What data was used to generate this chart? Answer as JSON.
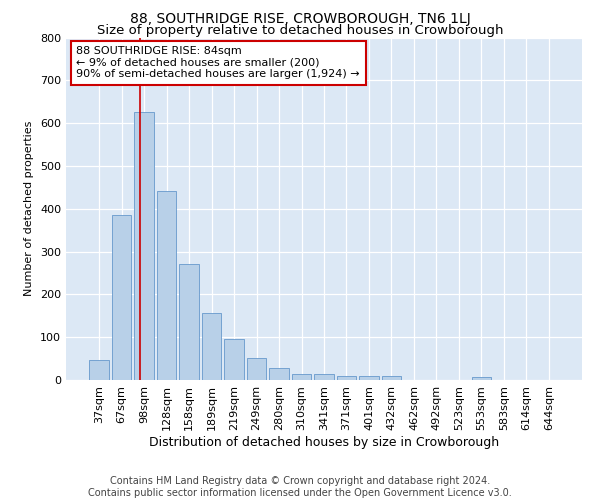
{
  "title": "88, SOUTHRIDGE RISE, CROWBOROUGH, TN6 1LJ",
  "subtitle": "Size of property relative to detached houses in Crowborough",
  "xlabel": "Distribution of detached houses by size in Crowborough",
  "ylabel": "Number of detached properties",
  "categories": [
    "37sqm",
    "67sqm",
    "98sqm",
    "128sqm",
    "158sqm",
    "189sqm",
    "219sqm",
    "249sqm",
    "280sqm",
    "310sqm",
    "341sqm",
    "371sqm",
    "401sqm",
    "432sqm",
    "462sqm",
    "492sqm",
    "523sqm",
    "553sqm",
    "583sqm",
    "614sqm",
    "644sqm"
  ],
  "values": [
    47,
    385,
    625,
    442,
    270,
    157,
    96,
    52,
    28,
    15,
    15,
    10,
    10,
    10,
    0,
    0,
    0,
    7,
    0,
    0,
    0
  ],
  "bar_color": "#b8d0e8",
  "bar_edgecolor": "#6699cc",
  "vline_x": 1.82,
  "vline_color": "#cc0000",
  "annotation_line1": "88 SOUTHRIDGE RISE: 84sqm",
  "annotation_line2": "← 9% of detached houses are smaller (200)",
  "annotation_line3": "90% of semi-detached houses are larger (1,924) →",
  "annotation_box_color": "#ffffff",
  "annotation_box_edgecolor": "#cc0000",
  "ylim": [
    0,
    800
  ],
  "yticks": [
    0,
    100,
    200,
    300,
    400,
    500,
    600,
    700,
    800
  ],
  "background_color": "#dce8f5",
  "footer_text": "Contains HM Land Registry data © Crown copyright and database right 2024.\nContains public sector information licensed under the Open Government Licence v3.0.",
  "title_fontsize": 10,
  "subtitle_fontsize": 9.5,
  "xlabel_fontsize": 9,
  "ylabel_fontsize": 8,
  "tick_fontsize": 8,
  "footer_fontsize": 7,
  "annotation_fontsize": 8
}
